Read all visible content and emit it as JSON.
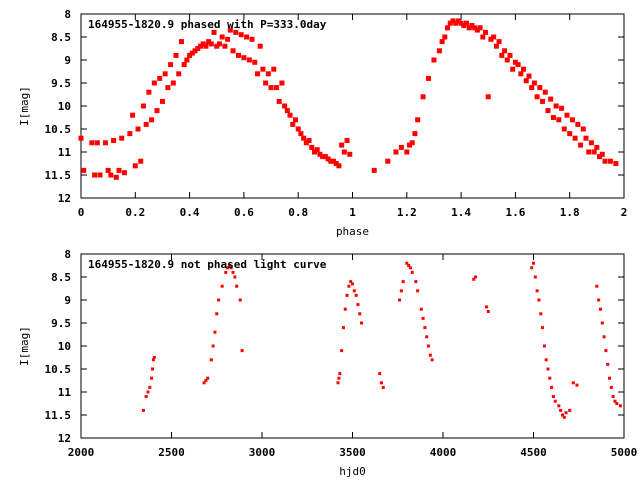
{
  "chart_data": [
    {
      "type": "scatter",
      "title": "164955-1820.9 phased with P=333.0day",
      "xlabel": "phase",
      "ylabel": "I[mag]",
      "xlim": [
        0,
        2
      ],
      "ylim": [
        12,
        8
      ],
      "y_inverted": true,
      "grid": false,
      "marker_color": "#ff0000",
      "x_ticks": [
        "0",
        "0.2",
        "0.4",
        "0.6",
        "0.8",
        "1",
        "1.2",
        "1.4",
        "1.6",
        "1.8",
        "2"
      ],
      "y_ticks": [
        "8",
        "8.5",
        "9",
        "9.5",
        "10",
        "10.5",
        "11",
        "11.5",
        "12"
      ],
      "x_tick_values": [
        0,
        0.2,
        0.4,
        0.6,
        0.8,
        1,
        1.2,
        1.4,
        1.6,
        1.8,
        2
      ],
      "y_tick_values": [
        8,
        8.5,
        9,
        9.5,
        10,
        10.5,
        11,
        11.5,
        12
      ],
      "points": [
        [
          0.0,
          10.7
        ],
        [
          0.01,
          11.4
        ],
        [
          0.04,
          10.8
        ],
        [
          0.05,
          11.5
        ],
        [
          0.06,
          10.8
        ],
        [
          0.07,
          11.5
        ],
        [
          0.09,
          10.8
        ],
        [
          0.1,
          11.4
        ],
        [
          0.11,
          11.5
        ],
        [
          0.12,
          10.75
        ],
        [
          0.13,
          11.55
        ],
        [
          0.14,
          11.4
        ],
        [
          0.15,
          10.7
        ],
        [
          0.16,
          11.45
        ],
        [
          0.18,
          10.6
        ],
        [
          0.19,
          10.2
        ],
        [
          0.2,
          11.3
        ],
        [
          0.21,
          10.5
        ],
        [
          0.22,
          11.2
        ],
        [
          0.23,
          10.0
        ],
        [
          0.24,
          10.4
        ],
        [
          0.25,
          9.7
        ],
        [
          0.26,
          10.3
        ],
        [
          0.27,
          9.5
        ],
        [
          0.28,
          10.1
        ],
        [
          0.29,
          9.4
        ],
        [
          0.3,
          9.9
        ],
        [
          0.31,
          9.3
        ],
        [
          0.32,
          9.6
        ],
        [
          0.33,
          9.1
        ],
        [
          0.34,
          9.5
        ],
        [
          0.35,
          8.9
        ],
        [
          0.36,
          9.3
        ],
        [
          0.37,
          8.6
        ],
        [
          0.38,
          9.1
        ],
        [
          0.39,
          9.0
        ],
        [
          0.4,
          8.9
        ],
        [
          0.41,
          8.85
        ],
        [
          0.42,
          8.8
        ],
        [
          0.43,
          8.75
        ],
        [
          0.44,
          8.7
        ],
        [
          0.45,
          8.65
        ],
        [
          0.46,
          8.7
        ],
        [
          0.47,
          8.6
        ],
        [
          0.48,
          8.65
        ],
        [
          0.49,
          8.4
        ],
        [
          0.5,
          8.7
        ],
        [
          0.51,
          8.65
        ],
        [
          0.52,
          8.5
        ],
        [
          0.53,
          8.7
        ],
        [
          0.54,
          8.55
        ],
        [
          0.55,
          8.35
        ],
        [
          0.56,
          8.8
        ],
        [
          0.57,
          8.4
        ],
        [
          0.58,
          8.9
        ],
        [
          0.59,
          8.45
        ],
        [
          0.6,
          8.95
        ],
        [
          0.61,
          8.5
        ],
        [
          0.62,
          9.0
        ],
        [
          0.63,
          8.55
        ],
        [
          0.64,
          9.05
        ],
        [
          0.65,
          9.3
        ],
        [
          0.66,
          8.7
        ],
        [
          0.67,
          9.2
        ],
        [
          0.68,
          9.5
        ],
        [
          0.69,
          9.3
        ],
        [
          0.7,
          9.6
        ],
        [
          0.71,
          9.2
        ],
        [
          0.72,
          9.6
        ],
        [
          0.73,
          9.9
        ],
        [
          0.74,
          9.5
        ],
        [
          0.75,
          10.0
        ],
        [
          0.76,
          10.1
        ],
        [
          0.77,
          10.2
        ],
        [
          0.78,
          10.4
        ],
        [
          0.79,
          10.3
        ],
        [
          0.8,
          10.5
        ],
        [
          0.81,
          10.6
        ],
        [
          0.82,
          10.7
        ],
        [
          0.83,
          10.8
        ],
        [
          0.84,
          10.75
        ],
        [
          0.85,
          10.9
        ],
        [
          0.86,
          11.0
        ],
        [
          0.87,
          10.95
        ],
        [
          0.88,
          11.05
        ],
        [
          0.89,
          11.1
        ],
        [
          0.9,
          11.1
        ],
        [
          0.91,
          11.15
        ],
        [
          0.92,
          11.2
        ],
        [
          0.93,
          11.2
        ],
        [
          0.94,
          11.25
        ],
        [
          0.95,
          11.3
        ],
        [
          0.96,
          10.85
        ],
        [
          0.97,
          11.0
        ],
        [
          0.98,
          10.75
        ],
        [
          0.99,
          11.05
        ],
        [
          1.08,
          11.4
        ],
        [
          1.13,
          11.2
        ],
        [
          1.16,
          11.0
        ],
        [
          1.18,
          10.9
        ],
        [
          1.2,
          11.0
        ],
        [
          1.21,
          10.85
        ],
        [
          1.22,
          10.8
        ],
        [
          1.23,
          10.6
        ],
        [
          1.24,
          10.3
        ],
        [
          1.26,
          9.8
        ],
        [
          1.28,
          9.4
        ],
        [
          1.3,
          9.0
        ],
        [
          1.32,
          8.8
        ],
        [
          1.33,
          8.6
        ],
        [
          1.34,
          8.5
        ],
        [
          1.35,
          8.3
        ],
        [
          1.36,
          8.2
        ],
        [
          1.37,
          8.15
        ],
        [
          1.38,
          8.2
        ],
        [
          1.39,
          8.15
        ],
        [
          1.4,
          8.2
        ],
        [
          1.41,
          8.25
        ],
        [
          1.42,
          8.2
        ],
        [
          1.43,
          8.3
        ],
        [
          1.44,
          8.25
        ],
        [
          1.45,
          8.3
        ],
        [
          1.46,
          8.35
        ],
        [
          1.47,
          8.3
        ],
        [
          1.48,
          8.5
        ],
        [
          1.49,
          8.4
        ],
        [
          1.5,
          9.8
        ],
        [
          1.51,
          8.55
        ],
        [
          1.52,
          8.5
        ],
        [
          1.53,
          8.7
        ],
        [
          1.54,
          8.6
        ],
        [
          1.55,
          8.9
        ],
        [
          1.56,
          8.8
        ],
        [
          1.57,
          9.0
        ],
        [
          1.58,
          8.9
        ],
        [
          1.59,
          9.2
        ],
        [
          1.6,
          9.05
        ],
        [
          1.61,
          9.1
        ],
        [
          1.62,
          9.3
        ],
        [
          1.63,
          9.2
        ],
        [
          1.64,
          9.45
        ],
        [
          1.65,
          9.35
        ],
        [
          1.66,
          9.6
        ],
        [
          1.67,
          9.5
        ],
        [
          1.68,
          9.8
        ],
        [
          1.69,
          9.6
        ],
        [
          1.7,
          9.9
        ],
        [
          1.71,
          9.7
        ],
        [
          1.72,
          10.1
        ],
        [
          1.73,
          9.85
        ],
        [
          1.74,
          10.25
        ],
        [
          1.75,
          10.0
        ],
        [
          1.76,
          10.3
        ],
        [
          1.77,
          10.05
        ],
        [
          1.78,
          10.5
        ],
        [
          1.79,
          10.2
        ],
        [
          1.8,
          10.6
        ],
        [
          1.81,
          10.3
        ],
        [
          1.82,
          10.7
        ],
        [
          1.83,
          10.4
        ],
        [
          1.84,
          10.85
        ],
        [
          1.85,
          10.5
        ],
        [
          1.86,
          10.7
        ],
        [
          1.87,
          11.0
        ],
        [
          1.88,
          10.8
        ],
        [
          1.89,
          11.0
        ],
        [
          1.9,
          10.9
        ],
        [
          1.91,
          11.1
        ],
        [
          1.92,
          11.05
        ],
        [
          1.93,
          11.2
        ],
        [
          1.95,
          11.2
        ],
        [
          1.97,
          11.25
        ]
      ]
    },
    {
      "type": "scatter",
      "title": "164955-1820.9 not phased light curve",
      "xlabel": "hjd0",
      "ylabel": "I[mag]",
      "xlim": [
        2000,
        5000
      ],
      "ylim": [
        12,
        8
      ],
      "y_inverted": true,
      "grid": false,
      "marker_color": "#ff0000",
      "x_ticks": [
        "2000",
        "2500",
        "3000",
        "3500",
        "4000",
        "4500",
        "5000"
      ],
      "y_ticks": [
        "8",
        "8.5",
        "9",
        "9.5",
        "10",
        "10.5",
        "11",
        "11.5",
        "12"
      ],
      "x_tick_values": [
        2000,
        2500,
        3000,
        3500,
        4000,
        4500,
        5000
      ],
      "y_tick_values": [
        8,
        8.5,
        9,
        9.5,
        10,
        10.5,
        11,
        11.5,
        12
      ],
      "points": [
        [
          2345,
          11.4
        ],
        [
          2360,
          11.1
        ],
        [
          2370,
          11.0
        ],
        [
          2380,
          10.9
        ],
        [
          2390,
          10.7
        ],
        [
          2395,
          10.5
        ],
        [
          2400,
          10.3
        ],
        [
          2405,
          10.25
        ],
        [
          2680,
          10.8
        ],
        [
          2690,
          10.75
        ],
        [
          2700,
          10.7
        ],
        [
          2720,
          10.3
        ],
        [
          2730,
          10.0
        ],
        [
          2740,
          9.7
        ],
        [
          2750,
          9.3
        ],
        [
          2760,
          9.0
        ],
        [
          2780,
          8.7
        ],
        [
          2800,
          8.4
        ],
        [
          2810,
          8.3
        ],
        [
          2820,
          8.25
        ],
        [
          2830,
          8.3
        ],
        [
          2840,
          8.4
        ],
        [
          2850,
          8.5
        ],
        [
          2860,
          8.7
        ],
        [
          2880,
          9.0
        ],
        [
          2890,
          10.1
        ],
        [
          3420,
          10.8
        ],
        [
          3425,
          10.7
        ],
        [
          3430,
          10.6
        ],
        [
          3440,
          10.1
        ],
        [
          3450,
          9.6
        ],
        [
          3460,
          9.2
        ],
        [
          3470,
          8.9
        ],
        [
          3480,
          8.7
        ],
        [
          3490,
          8.6
        ],
        [
          3500,
          8.65
        ],
        [
          3510,
          8.8
        ],
        [
          3520,
          8.9
        ],
        [
          3530,
          9.1
        ],
        [
          3540,
          9.3
        ],
        [
          3550,
          9.5
        ],
        [
          3650,
          10.6
        ],
        [
          3660,
          10.8
        ],
        [
          3670,
          10.9
        ],
        [
          3760,
          9.0
        ],
        [
          3770,
          8.8
        ],
        [
          3780,
          8.6
        ],
        [
          3800,
          8.2
        ],
        [
          3810,
          8.25
        ],
        [
          3820,
          8.3
        ],
        [
          3830,
          8.4
        ],
        [
          3850,
          8.6
        ],
        [
          3860,
          8.8
        ],
        [
          3880,
          9.2
        ],
        [
          3890,
          9.4
        ],
        [
          3900,
          9.6
        ],
        [
          3910,
          9.8
        ],
        [
          3920,
          10.0
        ],
        [
          3930,
          10.2
        ],
        [
          3940,
          10.3
        ],
        [
          4170,
          8.55
        ],
        [
          4180,
          8.5
        ],
        [
          4240,
          9.15
        ],
        [
          4250,
          9.25
        ],
        [
          4490,
          8.3
        ],
        [
          4500,
          8.2
        ],
        [
          4510,
          8.5
        ],
        [
          4520,
          8.8
        ],
        [
          4530,
          9.0
        ],
        [
          4540,
          9.3
        ],
        [
          4550,
          9.6
        ],
        [
          4560,
          10.0
        ],
        [
          4570,
          10.3
        ],
        [
          4580,
          10.5
        ],
        [
          4590,
          10.7
        ],
        [
          4600,
          10.9
        ],
        [
          4610,
          11.1
        ],
        [
          4620,
          11.2
        ],
        [
          4640,
          11.3
        ],
        [
          4650,
          11.4
        ],
        [
          4660,
          11.5
        ],
        [
          4670,
          11.55
        ],
        [
          4680,
          11.45
        ],
        [
          4700,
          11.4
        ],
        [
          4720,
          10.8
        ],
        [
          4740,
          10.85
        ],
        [
          4850,
          8.7
        ],
        [
          4860,
          9.0
        ],
        [
          4870,
          9.2
        ],
        [
          4880,
          9.5
        ],
        [
          4890,
          9.8
        ],
        [
          4900,
          10.1
        ],
        [
          4910,
          10.4
        ],
        [
          4920,
          10.7
        ],
        [
          4930,
          10.9
        ],
        [
          4940,
          11.1
        ],
        [
          4950,
          11.2
        ],
        [
          4960,
          11.25
        ],
        [
          4980,
          11.3
        ]
      ]
    }
  ]
}
